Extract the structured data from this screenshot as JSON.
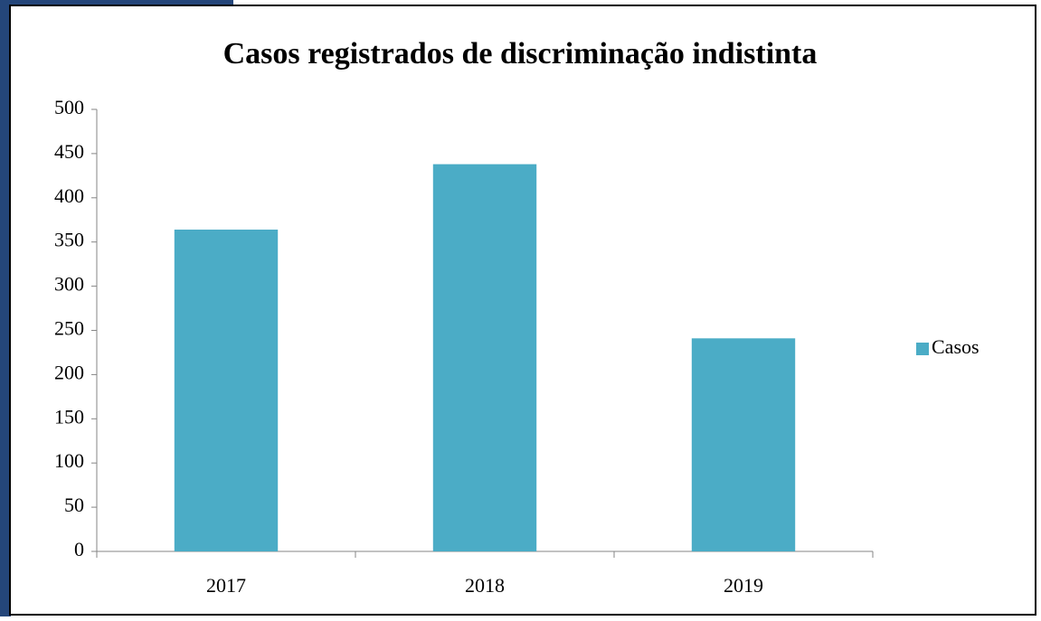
{
  "chart_data": {
    "type": "bar",
    "title": "Casos registrados de discriminação indistinta",
    "categories": [
      "2017",
      "2018",
      "2019"
    ],
    "series": [
      {
        "name": "Casos",
        "color": "#4bacc6",
        "values": [
          364,
          438,
          241
        ]
      }
    ],
    "ylim": [
      0,
      500
    ],
    "yticks": [
      0,
      50,
      100,
      150,
      200,
      250,
      300,
      350,
      400,
      450,
      500
    ],
    "grid": false,
    "legend": "right"
  }
}
